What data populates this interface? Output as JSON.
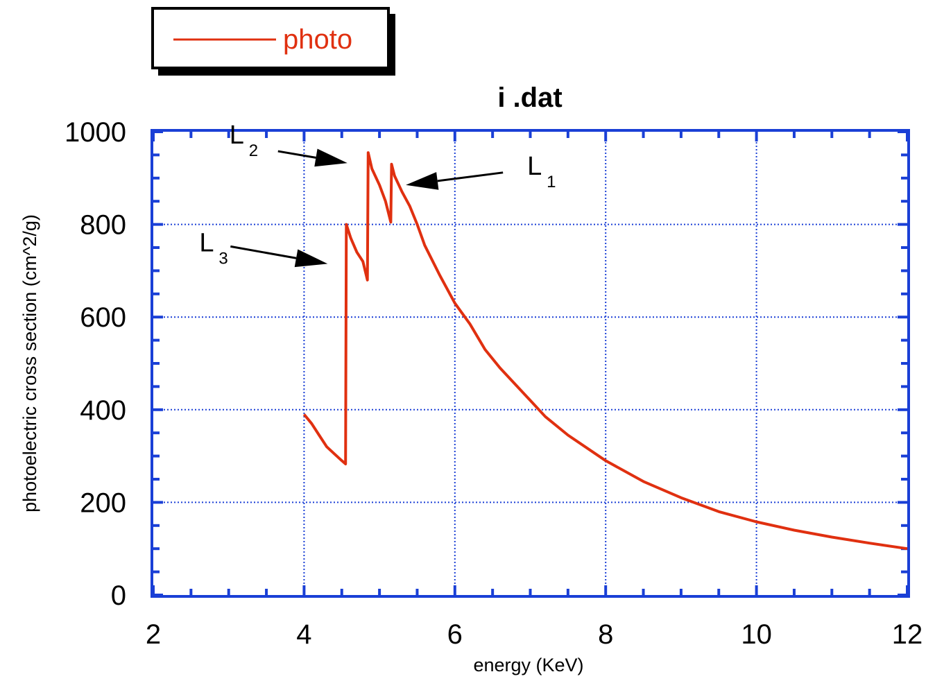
{
  "chart_data": {
    "type": "line",
    "title": "i  .dat",
    "xlabel": "energy (KeV)",
    "ylabel": "photoelectric cross section (cm^2/g)",
    "xlim": [
      2,
      12
    ],
    "ylim": [
      0,
      1000
    ],
    "x_ticks": [
      2,
      4,
      6,
      8,
      10,
      12
    ],
    "x_tick_labels": [
      "2",
      "4",
      "6",
      "8",
      "10",
      "12"
    ],
    "y_ticks": [
      0,
      200,
      400,
      600,
      800,
      1000
    ],
    "y_tick_labels": [
      "0",
      "200",
      "400",
      "600",
      "800",
      "1000"
    ],
    "grid": true,
    "legend_position": "top-left, outside plot",
    "series": [
      {
        "name": "photo",
        "color": "#e03010",
        "points": [
          [
            4.0,
            390
          ],
          [
            4.1,
            370
          ],
          [
            4.2,
            345
          ],
          [
            4.3,
            320
          ],
          [
            4.4,
            305
          ],
          [
            4.5,
            290
          ],
          [
            4.55,
            283
          ],
          [
            4.56,
            800
          ],
          [
            4.62,
            770
          ],
          [
            4.7,
            740
          ],
          [
            4.78,
            720
          ],
          [
            4.84,
            680
          ],
          [
            4.85,
            955
          ],
          [
            4.9,
            920
          ],
          [
            5.0,
            885
          ],
          [
            5.08,
            850
          ],
          [
            5.15,
            805
          ],
          [
            5.16,
            930
          ],
          [
            5.2,
            905
          ],
          [
            5.3,
            870
          ],
          [
            5.4,
            840
          ],
          [
            5.5,
            800
          ],
          [
            5.6,
            755
          ],
          [
            5.8,
            690
          ],
          [
            6.0,
            630
          ],
          [
            6.2,
            585
          ],
          [
            6.4,
            530
          ],
          [
            6.6,
            490
          ],
          [
            6.8,
            455
          ],
          [
            7.0,
            420
          ],
          [
            7.2,
            385
          ],
          [
            7.5,
            345
          ],
          [
            8.0,
            290
          ],
          [
            8.5,
            245
          ],
          [
            9.0,
            210
          ],
          [
            9.5,
            180
          ],
          [
            10.0,
            158
          ],
          [
            10.5,
            140
          ],
          [
            11.0,
            125
          ],
          [
            11.5,
            112
          ],
          [
            12.0,
            100
          ]
        ]
      }
    ],
    "annotations": [
      {
        "label": "L",
        "subscript": "2",
        "points_to": [
          4.85,
          955
        ]
      },
      {
        "label": "L",
        "subscript": "1",
        "points_to": [
          5.35,
          885
        ]
      },
      {
        "label": "L",
        "subscript": "3",
        "points_to": [
          4.45,
          730
        ]
      }
    ]
  }
}
